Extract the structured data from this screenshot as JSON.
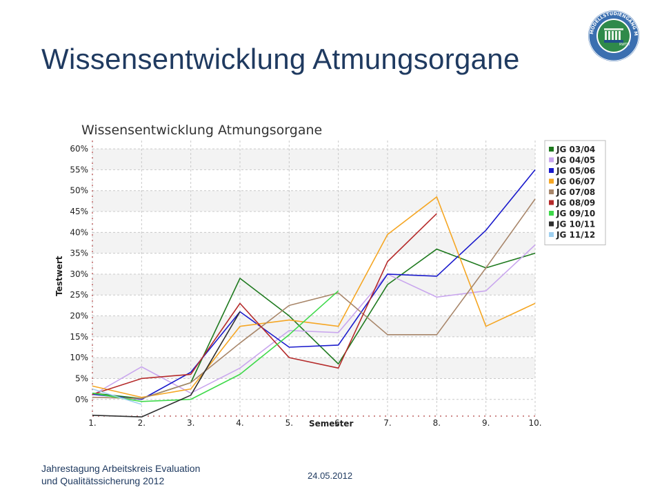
{
  "slide": {
    "title": "Wissensentwicklung Atmungsorgane"
  },
  "footer": {
    "line1": "Jahrestagung Arbeitskreis Evaluation",
    "line2": "und Qualitätssicherung 2012",
    "date": "24.05.2012"
  },
  "logo": {
    "icon": "university-seal-icon",
    "ring_text": "MODELLSTUDIENGANG MEDIZIN AACHEN",
    "inner_text": "RWTH",
    "colors": {
      "ring": "#3b6fb0",
      "center": "#2f8a4a"
    }
  },
  "chart_data": {
    "type": "line",
    "title": "Wissensentwicklung Atmungsorgane",
    "xlabel": "Semester",
    "ylabel": "Testwert",
    "categories": [
      "1.",
      "2.",
      "3.",
      "4.",
      "5.",
      "6.",
      "7.",
      "8.",
      "9.",
      "10."
    ],
    "ylim": [
      -4,
      62
    ],
    "yticks": [
      0,
      5,
      10,
      15,
      20,
      25,
      30,
      35,
      40,
      45,
      50,
      55,
      60
    ],
    "ytick_labels": [
      "0%",
      "5%",
      "10%",
      "15%",
      "20%",
      "25%",
      "30%",
      "35%",
      "40%",
      "45%",
      "50%",
      "55%",
      "60%"
    ],
    "grid": true,
    "legend": "right",
    "series": [
      {
        "name": "JG 03/04",
        "color": "#1f7a1f",
        "values": [
          1.5,
          0.2,
          4.0,
          29.0,
          20.0,
          8.5,
          27.5,
          36.0,
          31.5,
          35.0
        ]
      },
      {
        "name": "JG 04/05",
        "color": "#c9a6ee",
        "values": [
          1.0,
          7.8,
          1.5,
          7.5,
          16.5,
          16.0,
          30.0,
          24.5,
          26.0,
          37.0
        ]
      },
      {
        "name": "JG 05/06",
        "color": "#1a1acc",
        "values": [
          1.2,
          0.0,
          6.5,
          21.0,
          12.5,
          13.0,
          30.0,
          29.5,
          40.5,
          55.0
        ]
      },
      {
        "name": "JG 06/07",
        "color": "#f5a623",
        "values": [
          3.2,
          0.5,
          2.5,
          17.5,
          19.0,
          17.5,
          39.5,
          48.5,
          17.5,
          23.0
        ]
      },
      {
        "name": "JG 07/08",
        "color": "#a8866a",
        "values": [
          0.5,
          0.2,
          4.0,
          13.5,
          22.5,
          25.5,
          15.5,
          15.5,
          31.5,
          48.0
        ]
      },
      {
        "name": "JG 08/09",
        "color": "#b52a2a",
        "values": [
          1.2,
          5.0,
          6.0,
          23.0,
          10.0,
          7.5,
          33.0,
          44.5,
          null,
          null
        ]
      },
      {
        "name": "JG 09/10",
        "color": "#3ed94a",
        "values": [
          1.5,
          -0.5,
          0.0,
          6.0,
          15.5,
          26.0,
          null,
          null,
          null,
          null
        ]
      },
      {
        "name": "JG 10/11",
        "color": "#2e2e2e",
        "values": [
          -3.8,
          -4.2,
          1.0,
          21.0,
          null,
          null,
          null,
          null,
          null,
          null
        ]
      },
      {
        "name": "JG 11/12",
        "color": "#9fd0f0",
        "values": [
          2.5,
          -1.2,
          null,
          null,
          null,
          null,
          null,
          null,
          null,
          null
        ]
      }
    ]
  }
}
